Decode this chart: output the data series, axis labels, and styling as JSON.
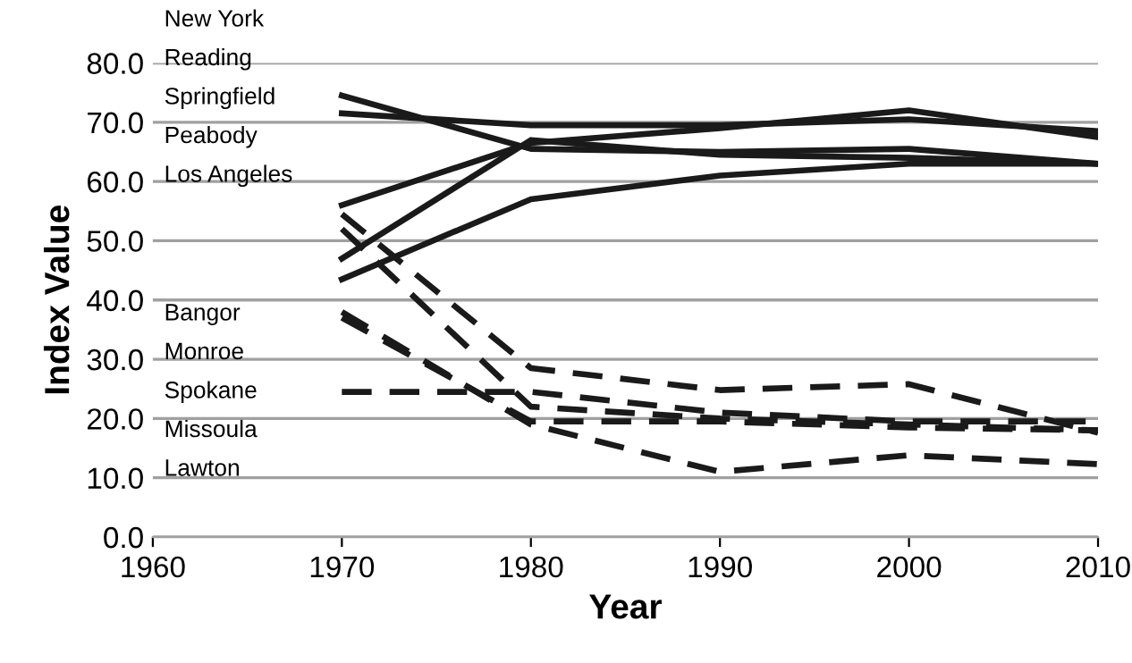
{
  "chart_data": {
    "type": "line",
    "xlabel": "Year",
    "ylabel": "Index Value",
    "x": [
      1970,
      1980,
      1990,
      2000,
      2010
    ],
    "xlim": [
      1960,
      2010
    ],
    "xticks": [
      1960,
      1970,
      1980,
      1990,
      2000,
      2010
    ],
    "ylim": [
      0,
      80
    ],
    "yticks": [
      {
        "value": 0,
        "label": "0.0"
      },
      {
        "value": 10,
        "label": "10.0"
      },
      {
        "value": 20,
        "label": "20.0"
      },
      {
        "value": 30,
        "label": "30.0"
      },
      {
        "value": 40,
        "label": "40.0"
      },
      {
        "value": 50,
        "label": "50.0"
      },
      {
        "value": 60,
        "label": "60.0"
      },
      {
        "value": 70,
        "label": "70.0"
      },
      {
        "value": 80,
        "label": "80.0"
      }
    ],
    "grid": "y",
    "marker": "none",
    "annotations": [
      "New York",
      "Reading",
      "Springfield",
      "Peabody",
      "Los Angeles",
      "Bangor",
      "Monroe",
      "Spokane",
      "Missoula",
      "Lawton"
    ],
    "series": [
      {
        "color": "#1a1a1a",
        "line_style": "solid",
        "values": [
          74.5,
          65.5,
          65,
          65.5,
          63
        ]
      },
      {
        "color": "#1a1a1a",
        "line_style": "solid",
        "values": [
          71.5,
          69.5,
          69.5,
          70.5,
          68.5
        ]
      },
      {
        "color": "#1a1a1a",
        "line_style": "solid",
        "values": [
          56,
          66.5,
          69,
          72,
          67.5
        ]
      },
      {
        "color": "#1a1a1a",
        "line_style": "solid",
        "values": [
          47,
          67,
          64.5,
          64,
          63
        ]
      },
      {
        "color": "#1a1a1a",
        "line_style": "solid",
        "values": [
          43.5,
          57,
          61,
          63,
          63
        ]
      },
      {
        "color": "#1a1a1a",
        "line_style": "dashed",
        "values": [
          54.5,
          28.5,
          24.8,
          25.8,
          17.6
        ]
      },
      {
        "color": "#1a1a1a",
        "line_style": "dashed",
        "values": [
          52,
          22,
          20,
          19,
          18
        ]
      },
      {
        "color": "#1a1a1a",
        "line_style": "dashed",
        "values": [
          38,
          19,
          11,
          13.8,
          12.3
        ]
      },
      {
        "color": "#1a1a1a",
        "line_style": "dashed",
        "values": [
          37,
          19.5,
          19.5,
          18.5,
          18
        ]
      },
      {
        "color": "#1a1a1a",
        "line_style": "dashed",
        "values": [
          24.5,
          24.5,
          21,
          19.5,
          19.5
        ]
      }
    ]
  }
}
